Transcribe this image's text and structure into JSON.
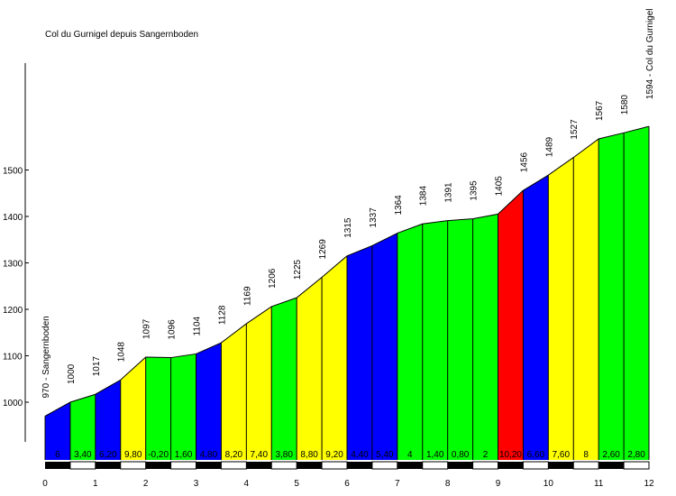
{
  "chart_data": {
    "type": "area",
    "title": "Col du Gurnigel depuis Sangernboden",
    "xlabel": "",
    "ylabel": "",
    "x_unit_ticks": [
      "0",
      "1",
      "2",
      "3",
      "4",
      "5",
      "6",
      "7",
      "8",
      "9",
      "10",
      "11",
      "12"
    ],
    "y_ticks": [
      "1000",
      "1100",
      "1200",
      "1300",
      "1400",
      "1500"
    ],
    "ylim": [
      900,
      1700
    ],
    "xlim": [
      0,
      12
    ],
    "start_label": "970 - Sangernboden",
    "end_label": "1594 - Col du Gurnigel",
    "points": [
      {
        "km": 0.0,
        "alt": 970,
        "label": ""
      },
      {
        "km": 0.5,
        "alt": 1000,
        "label": "1000"
      },
      {
        "km": 1.0,
        "alt": 1017,
        "label": "1017"
      },
      {
        "km": 1.5,
        "alt": 1048,
        "label": "1048"
      },
      {
        "km": 2.0,
        "alt": 1097,
        "label": "1097"
      },
      {
        "km": 2.5,
        "alt": 1096,
        "label": "1096"
      },
      {
        "km": 3.0,
        "alt": 1104,
        "label": "1104"
      },
      {
        "km": 3.5,
        "alt": 1128,
        "label": "1128"
      },
      {
        "km": 4.0,
        "alt": 1169,
        "label": "1169"
      },
      {
        "km": 4.5,
        "alt": 1206,
        "label": "1206"
      },
      {
        "km": 5.0,
        "alt": 1225,
        "label": "1225"
      },
      {
        "km": 5.5,
        "alt": 1269,
        "label": "1269"
      },
      {
        "km": 6.0,
        "alt": 1315,
        "label": "1315"
      },
      {
        "km": 6.5,
        "alt": 1337,
        "label": "1337"
      },
      {
        "km": 7.0,
        "alt": 1364,
        "label": "1364"
      },
      {
        "km": 7.5,
        "alt": 1384,
        "label": "1384"
      },
      {
        "km": 8.0,
        "alt": 1391,
        "label": "1391"
      },
      {
        "km": 8.5,
        "alt": 1395,
        "label": "1395"
      },
      {
        "km": 9.0,
        "alt": 1405,
        "label": "1405"
      },
      {
        "km": 9.5,
        "alt": 1456,
        "label": "1456"
      },
      {
        "km": 10.0,
        "alt": 1489,
        "label": "1489"
      },
      {
        "km": 10.5,
        "alt": 1527,
        "label": "1527"
      },
      {
        "km": 11.0,
        "alt": 1567,
        "label": "1567"
      },
      {
        "km": 11.5,
        "alt": 1580,
        "label": "1580"
      },
      {
        "km": 12.0,
        "alt": 1594,
        "label": ""
      }
    ],
    "segments": [
      {
        "gradient": "6",
        "color": "#0000ff"
      },
      {
        "gradient": "3,40",
        "color": "#00ff00"
      },
      {
        "gradient": "6,20",
        "color": "#0000ff"
      },
      {
        "gradient": "9,80",
        "color": "#ffff00"
      },
      {
        "gradient": "-0,20",
        "color": "#00ff00"
      },
      {
        "gradient": "1,60",
        "color": "#00ff00"
      },
      {
        "gradient": "4,80",
        "color": "#0000ff"
      },
      {
        "gradient": "8,20",
        "color": "#ffff00"
      },
      {
        "gradient": "7,40",
        "color": "#ffff00"
      },
      {
        "gradient": "3,80",
        "color": "#00ff00"
      },
      {
        "gradient": "8,80",
        "color": "#ffff00"
      },
      {
        "gradient": "9,20",
        "color": "#ffff00"
      },
      {
        "gradient": "4,40",
        "color": "#0000ff"
      },
      {
        "gradient": "5,40",
        "color": "#0000ff"
      },
      {
        "gradient": "4",
        "color": "#00ff00"
      },
      {
        "gradient": "1,40",
        "color": "#00ff00"
      },
      {
        "gradient": "0,80",
        "color": "#00ff00"
      },
      {
        "gradient": "2",
        "color": "#00ff00"
      },
      {
        "gradient": "10,20",
        "color": "#ff0000"
      },
      {
        "gradient": "6,60",
        "color": "#0000ff"
      },
      {
        "gradient": "7,60",
        "color": "#ffff00"
      },
      {
        "gradient": "8",
        "color": "#ffff00"
      },
      {
        "gradient": "2,60",
        "color": "#00ff00"
      },
      {
        "gradient": "2,80",
        "color": "#00ff00"
      }
    ],
    "legend": "none",
    "grid": false
  }
}
